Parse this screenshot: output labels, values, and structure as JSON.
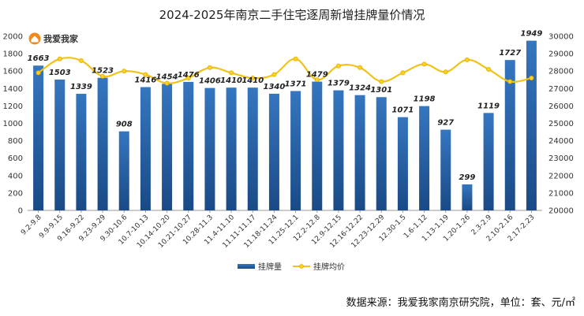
{
  "logo": {
    "text": "我爱我家"
  },
  "source": "数据来源：我爱我家南京研究院，单位：套、元/㎡",
  "colors": {
    "bar_top": "#2f6fb5",
    "bar_bottom": "#1b4d8a",
    "line": "#f2c21a",
    "marker": "#ffd21f",
    "axis": "#999999",
    "logo_orange": "#f08a1c"
  },
  "chart_data": {
    "type": "bar",
    "title": "2024-2025年南京二手住宅逐周新增挂牌量价情况",
    "categories": [
      "9.2-9.8",
      "9.9-9.15",
      "9.16-9.22",
      "9.23-9.29",
      "9.30-10.6",
      "10.7-10.13",
      "10.14-10.20",
      "10.21-10.27",
      "10.28-11.3",
      "11.4-11.10",
      "11.11-11.17",
      "11.18-11.24",
      "11.25-12.1",
      "12.2-12.8",
      "12.9-12.15",
      "12.16-12.22",
      "12.23-12.29",
      "12.30-1.5",
      "1.6-1.12",
      "1.13-1.19",
      "1.20-1.26",
      "2.3-2.9",
      "2.10-2.16",
      "2.17-2.23"
    ],
    "series": [
      {
        "name": "挂牌量",
        "type": "bar",
        "axis": "left",
        "values": [
          1663,
          1503,
          1339,
          1523,
          908,
          1416,
          1454,
          1476,
          1406,
          1410,
          1410,
          1340,
          1371,
          1479,
          1379,
          1324,
          1301,
          1071,
          1198,
          927,
          299,
          1119,
          1727,
          1949
        ]
      },
      {
        "name": "挂牌均价",
        "type": "line",
        "axis": "right",
        "values": [
          27900,
          28700,
          28600,
          27700,
          28000,
          27800,
          27300,
          27600,
          28200,
          27900,
          27600,
          27800,
          28700,
          27500,
          28300,
          28200,
          27400,
          27900,
          28400,
          27950,
          28650,
          28100,
          27400,
          27600
        ]
      }
    ],
    "y_left": {
      "min": 0,
      "max": 2000,
      "step": 200,
      "ticks": [
        "0",
        "200",
        "400",
        "600",
        "800",
        "1000",
        "1200",
        "1400",
        "1600",
        "1800",
        "2000"
      ]
    },
    "y_right": {
      "min": 20000,
      "max": 30000,
      "step": 1000,
      "ticks": [
        "20000",
        "21000",
        "22000",
        "23000",
        "24000",
        "25000",
        "26000",
        "27000",
        "28000",
        "29000",
        "30000"
      ]
    },
    "bar_labels": [
      "1663",
      "1503",
      "1339",
      "1523",
      "908",
      "1416",
      "1454",
      "1476",
      "1406",
      "1410",
      "1410",
      "1340",
      "1371",
      "1479",
      "1379",
      "1324",
      "1301",
      "1071",
      "1198",
      "927",
      "299",
      "1119",
      "1727",
      "1949"
    ],
    "legend": [
      "挂牌量",
      "挂牌均价"
    ],
    "legend_position": "bottom-center",
    "grid": false
  }
}
